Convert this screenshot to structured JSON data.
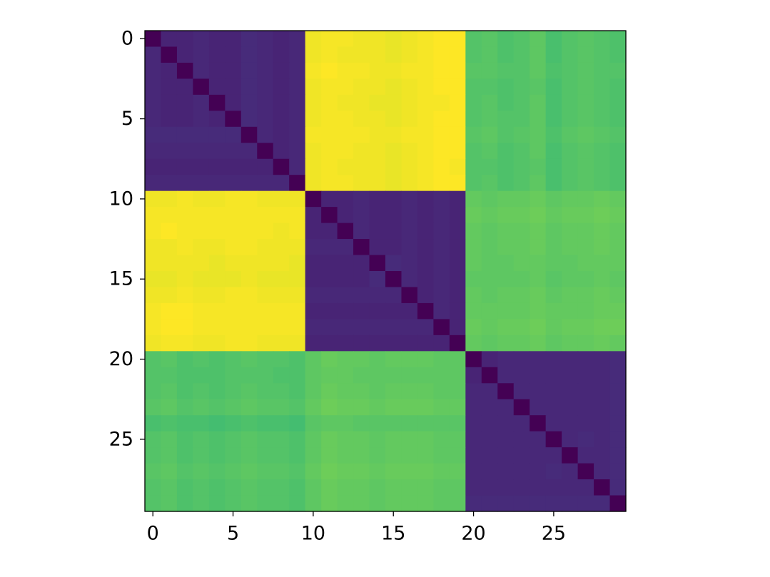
{
  "chart_data": {
    "type": "heatmap",
    "colormap": "viridis",
    "xlim": [
      -0.5,
      29.5
    ],
    "ylim": [
      -0.5,
      29.5
    ],
    "y_inverted": true,
    "xticks": [
      0,
      5,
      10,
      15,
      20,
      25
    ],
    "yticks": [
      0,
      5,
      10,
      15,
      20,
      25
    ],
    "values": [
      [
        0,
        0.1,
        0.1,
        0.11,
        0.1,
        0.1,
        0.12,
        0.11,
        0.1,
        0.11,
        0.97,
        0.98,
        0.98,
        0.97,
        0.97,
        0.96,
        0.97,
        0.98,
        0.99,
        0.99,
        0.72,
        0.73,
        0.71,
        0.72,
        0.74,
        0.7,
        0.72,
        0.73,
        0.72,
        0.71
      ],
      [
        0.11,
        0,
        0.1,
        0.11,
        0.1,
        0.1,
        0.12,
        0.11,
        0.1,
        0.11,
        0.97,
        0.98,
        0.97,
        0.97,
        0.97,
        0.96,
        0.97,
        0.98,
        0.99,
        0.99,
        0.72,
        0.73,
        0.71,
        0.72,
        0.74,
        0.7,
        0.72,
        0.73,
        0.72,
        0.71
      ],
      [
        0.11,
        0.1,
        0,
        0.11,
        0.1,
        0.1,
        0.12,
        0.11,
        0.1,
        0.11,
        0.98,
        0.99,
        0.98,
        0.98,
        0.97,
        0.97,
        0.98,
        0.98,
        0.99,
        0.99,
        0.73,
        0.73,
        0.72,
        0.72,
        0.74,
        0.71,
        0.72,
        0.73,
        0.72,
        0.72
      ],
      [
        0.11,
        0.1,
        0.1,
        0,
        0.1,
        0.1,
        0.12,
        0.11,
        0.1,
        0.11,
        0.97,
        0.98,
        0.98,
        0.97,
        0.97,
        0.96,
        0.97,
        0.98,
        0.99,
        0.99,
        0.72,
        0.72,
        0.71,
        0.72,
        0.73,
        0.7,
        0.72,
        0.73,
        0.72,
        0.71
      ],
      [
        0.11,
        0.1,
        0.1,
        0.11,
        0,
        0.1,
        0.12,
        0.11,
        0.1,
        0.11,
        0.97,
        0.98,
        0.97,
        0.97,
        0.96,
        0.96,
        0.97,
        0.98,
        0.98,
        0.99,
        0.72,
        0.73,
        0.71,
        0.72,
        0.74,
        0.7,
        0.72,
        0.73,
        0.72,
        0.71
      ],
      [
        0.11,
        0.1,
        0.1,
        0.11,
        0.1,
        0,
        0.12,
        0.11,
        0.1,
        0.11,
        0.97,
        0.98,
        0.98,
        0.97,
        0.97,
        0.96,
        0.97,
        0.98,
        0.99,
        0.99,
        0.72,
        0.73,
        0.72,
        0.72,
        0.74,
        0.7,
        0.72,
        0.73,
        0.72,
        0.71
      ],
      [
        0.12,
        0.12,
        0.12,
        0.12,
        0.12,
        0.12,
        0,
        0.11,
        0.1,
        0.11,
        0.98,
        0.98,
        0.98,
        0.98,
        0.97,
        0.97,
        0.98,
        0.98,
        0.99,
        0.99,
        0.73,
        0.74,
        0.72,
        0.73,
        0.74,
        0.71,
        0.73,
        0.74,
        0.73,
        0.72
      ],
      [
        0.11,
        0.11,
        0.11,
        0.11,
        0.11,
        0.11,
        0.11,
        0,
        0.1,
        0.11,
        0.97,
        0.98,
        0.98,
        0.97,
        0.97,
        0.96,
        0.97,
        0.98,
        0.99,
        0.99,
        0.72,
        0.73,
        0.71,
        0.72,
        0.74,
        0.7,
        0.72,
        0.73,
        0.72,
        0.71
      ],
      [
        0.1,
        0.1,
        0.1,
        0.1,
        0.1,
        0.1,
        0.1,
        0.1,
        0,
        0.11,
        0.97,
        0.98,
        0.97,
        0.97,
        0.97,
        0.96,
        0.97,
        0.98,
        0.99,
        0.98,
        0.72,
        0.72,
        0.71,
        0.72,
        0.73,
        0.7,
        0.72,
        0.73,
        0.72,
        0.71
      ],
      [
        0.11,
        0.11,
        0.11,
        0.11,
        0.11,
        0.11,
        0.11,
        0.11,
        0.11,
        0,
        0.97,
        0.98,
        0.98,
        0.97,
        0.97,
        0.96,
        0.97,
        0.98,
        0.99,
        0.99,
        0.72,
        0.73,
        0.71,
        0.72,
        0.74,
        0.7,
        0.72,
        0.73,
        0.72,
        0.71
      ],
      [
        0.97,
        0.97,
        0.98,
        0.97,
        0.97,
        0.98,
        0.98,
        0.97,
        0.97,
        0.97,
        0,
        0.1,
        0.1,
        0.11,
        0.1,
        0.1,
        0.11,
        0.1,
        0.11,
        0.1,
        0.75,
        0.74,
        0.75,
        0.75,
        0.76,
        0.74,
        0.75,
        0.75,
        0.76,
        0.75
      ],
      [
        0.98,
        0.98,
        0.98,
        0.98,
        0.98,
        0.98,
        0.98,
        0.98,
        0.98,
        0.98,
        0.1,
        0,
        0.1,
        0.11,
        0.1,
        0.1,
        0.11,
        0.1,
        0.11,
        0.1,
        0.76,
        0.75,
        0.76,
        0.76,
        0.77,
        0.75,
        0.76,
        0.76,
        0.77,
        0.76
      ],
      [
        0.98,
        0.99,
        0.98,
        0.98,
        0.98,
        0.98,
        0.98,
        0.98,
        0.97,
        0.98,
        0.1,
        0.1,
        0,
        0.11,
        0.1,
        0.1,
        0.11,
        0.1,
        0.11,
        0.1,
        0.75,
        0.74,
        0.75,
        0.75,
        0.76,
        0.74,
        0.75,
        0.75,
        0.76,
        0.75
      ],
      [
        0.97,
        0.97,
        0.98,
        0.97,
        0.97,
        0.98,
        0.98,
        0.97,
        0.97,
        0.97,
        0.11,
        0.11,
        0.11,
        0,
        0.1,
        0.1,
        0.11,
        0.1,
        0.11,
        0.1,
        0.75,
        0.74,
        0.75,
        0.75,
        0.76,
        0.74,
        0.75,
        0.75,
        0.76,
        0.75
      ],
      [
        0.97,
        0.97,
        0.97,
        0.97,
        0.96,
        0.97,
        0.97,
        0.97,
        0.97,
        0.96,
        0.1,
        0.1,
        0.1,
        0.1,
        0,
        0.12,
        0.11,
        0.1,
        0.11,
        0.1,
        0.75,
        0.74,
        0.74,
        0.75,
        0.75,
        0.74,
        0.74,
        0.75,
        0.75,
        0.75
      ],
      [
        0.96,
        0.96,
        0.97,
        0.96,
        0.96,
        0.96,
        0.97,
        0.96,
        0.96,
        0.96,
        0.1,
        0.1,
        0.1,
        0.1,
        0.12,
        0,
        0.11,
        0.1,
        0.11,
        0.1,
        0.74,
        0.74,
        0.74,
        0.74,
        0.75,
        0.73,
        0.74,
        0.74,
        0.75,
        0.74
      ],
      [
        0.97,
        0.97,
        0.98,
        0.97,
        0.97,
        0.98,
        0.98,
        0.97,
        0.97,
        0.97,
        0.11,
        0.11,
        0.11,
        0.11,
        0.11,
        0.11,
        0,
        0.1,
        0.11,
        0.1,
        0.75,
        0.74,
        0.75,
        0.75,
        0.76,
        0.74,
        0.75,
        0.75,
        0.76,
        0.75
      ],
      [
        0.98,
        0.99,
        0.99,
        0.98,
        0.98,
        0.98,
        0.98,
        0.98,
        0.98,
        0.98,
        0.1,
        0.1,
        0.1,
        0.1,
        0.1,
        0.1,
        0.1,
        0,
        0.11,
        0.1,
        0.75,
        0.75,
        0.75,
        0.75,
        0.76,
        0.75,
        0.75,
        0.75,
        0.76,
        0.76
      ],
      [
        0.98,
        0.99,
        0.99,
        0.98,
        0.98,
        0.98,
        0.98,
        0.98,
        0.98,
        0.98,
        0.11,
        0.11,
        0.11,
        0.11,
        0.11,
        0.11,
        0.11,
        0.11,
        0,
        0.1,
        0.76,
        0.75,
        0.76,
        0.76,
        0.77,
        0.75,
        0.76,
        0.76,
        0.77,
        0.77
      ],
      [
        0.97,
        0.98,
        0.98,
        0.97,
        0.97,
        0.98,
        0.98,
        0.97,
        0.97,
        0.97,
        0.1,
        0.1,
        0.1,
        0.1,
        0.1,
        0.1,
        0.1,
        0.1,
        0.1,
        0,
        0.75,
        0.74,
        0.75,
        0.75,
        0.76,
        0.74,
        0.75,
        0.75,
        0.76,
        0.75
      ],
      [
        0.72,
        0.73,
        0.71,
        0.72,
        0.71,
        0.72,
        0.73,
        0.72,
        0.72,
        0.71,
        0.74,
        0.76,
        0.75,
        0.75,
        0.74,
        0.75,
        0.75,
        0.75,
        0.74,
        0.74,
        0,
        0.1,
        0.11,
        0.11,
        0.11,
        0.11,
        0.11,
        0.11,
        0.11,
        0.12
      ],
      [
        0.72,
        0.72,
        0.71,
        0.71,
        0.71,
        0.72,
        0.72,
        0.72,
        0.71,
        0.71,
        0.74,
        0.75,
        0.75,
        0.74,
        0.74,
        0.74,
        0.74,
        0.74,
        0.74,
        0.74,
        0.1,
        0,
        0.11,
        0.11,
        0.11,
        0.11,
        0.11,
        0.11,
        0.11,
        0.12
      ],
      [
        0.72,
        0.73,
        0.71,
        0.72,
        0.71,
        0.72,
        0.73,
        0.72,
        0.72,
        0.71,
        0.74,
        0.76,
        0.75,
        0.75,
        0.74,
        0.75,
        0.75,
        0.75,
        0.74,
        0.74,
        0.11,
        0.11,
        0,
        0.11,
        0.11,
        0.11,
        0.11,
        0.11,
        0.11,
        0.12
      ],
      [
        0.73,
        0.74,
        0.72,
        0.73,
        0.72,
        0.73,
        0.74,
        0.73,
        0.73,
        0.72,
        0.75,
        0.77,
        0.76,
        0.76,
        0.75,
        0.76,
        0.76,
        0.76,
        0.75,
        0.75,
        0.11,
        0.11,
        0.11,
        0,
        0.11,
        0.11,
        0.11,
        0.11,
        0.11,
        0.12
      ],
      [
        0.7,
        0.71,
        0.7,
        0.7,
        0.69,
        0.7,
        0.71,
        0.7,
        0.7,
        0.69,
        0.73,
        0.74,
        0.74,
        0.73,
        0.73,
        0.73,
        0.73,
        0.73,
        0.73,
        0.73,
        0.11,
        0.11,
        0.11,
        0.11,
        0,
        0.11,
        0.11,
        0.11,
        0.11,
        0.12
      ],
      [
        0.72,
        0.73,
        0.71,
        0.72,
        0.71,
        0.72,
        0.73,
        0.72,
        0.72,
        0.71,
        0.74,
        0.76,
        0.75,
        0.75,
        0.74,
        0.75,
        0.75,
        0.75,
        0.74,
        0.74,
        0.11,
        0.11,
        0.11,
        0.11,
        0.11,
        0,
        0.11,
        0.12,
        0.11,
        0.12
      ],
      [
        0.72,
        0.73,
        0.71,
        0.72,
        0.71,
        0.72,
        0.73,
        0.72,
        0.72,
        0.71,
        0.74,
        0.76,
        0.75,
        0.75,
        0.74,
        0.75,
        0.75,
        0.75,
        0.74,
        0.74,
        0.11,
        0.11,
        0.11,
        0.11,
        0.11,
        0.11,
        0,
        0.11,
        0.11,
        0.12
      ],
      [
        0.73,
        0.74,
        0.72,
        0.73,
        0.72,
        0.73,
        0.74,
        0.73,
        0.73,
        0.72,
        0.75,
        0.77,
        0.76,
        0.76,
        0.75,
        0.76,
        0.76,
        0.76,
        0.75,
        0.75,
        0.11,
        0.11,
        0.11,
        0.11,
        0.11,
        0.12,
        0.11,
        0,
        0.11,
        0.12
      ],
      [
        0.72,
        0.73,
        0.71,
        0.72,
        0.71,
        0.72,
        0.73,
        0.72,
        0.72,
        0.71,
        0.74,
        0.76,
        0.75,
        0.75,
        0.74,
        0.75,
        0.75,
        0.75,
        0.74,
        0.74,
        0.11,
        0.11,
        0.11,
        0.11,
        0.11,
        0.11,
        0.11,
        0.11,
        0,
        0.12
      ],
      [
        0.72,
        0.73,
        0.71,
        0.72,
        0.71,
        0.72,
        0.73,
        0.72,
        0.72,
        0.71,
        0.74,
        0.76,
        0.75,
        0.75,
        0.74,
        0.75,
        0.75,
        0.75,
        0.74,
        0.74,
        0.12,
        0.12,
        0.12,
        0.12,
        0.12,
        0.12,
        0.12,
        0.12,
        0.12,
        0
      ]
    ]
  }
}
